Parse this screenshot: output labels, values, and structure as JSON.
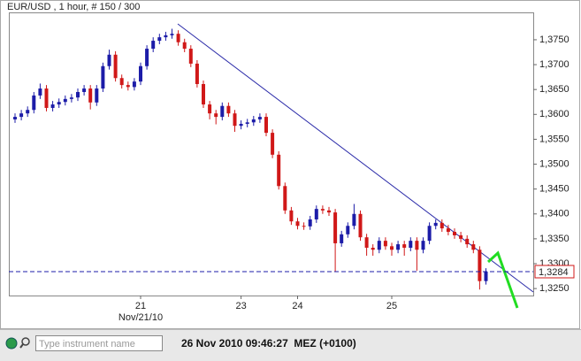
{
  "chart_data": {
    "type": "candlestick",
    "title": "EUR/USD , 1 hour, # 150 / 300",
    "categories": [
      null,
      null,
      null,
      null,
      null,
      null,
      null,
      null,
      null,
      null,
      null,
      null,
      null,
      null,
      null,
      null,
      null,
      null,
      null,
      null,
      "21",
      null,
      null,
      null,
      null,
      null,
      null,
      null,
      null,
      null,
      null,
      null,
      null,
      null,
      null,
      null,
      "23",
      null,
      null,
      null,
      null,
      null,
      null,
      null,
      null,
      "24",
      null,
      null,
      null,
      null,
      null,
      null,
      null,
      null,
      null,
      null,
      null,
      null,
      null,
      null,
      "25",
      null,
      null,
      null,
      null,
      null,
      null,
      null,
      null,
      null,
      null,
      null,
      null,
      null,
      null,
      null
    ],
    "date_label": "Nov/21/10",
    "open": [
      1.359,
      1.3595,
      1.3602,
      1.3609,
      1.3638,
      1.3652,
      1.3613,
      1.362,
      1.3625,
      1.3631,
      1.3634,
      1.3645,
      1.3652,
      1.3624,
      1.3652,
      1.3697,
      1.372,
      1.3673,
      1.3659,
      1.3655,
      1.3666,
      1.3697,
      1.3732,
      1.3748,
      1.3755,
      1.3759,
      1.3762,
      1.3745,
      1.3732,
      1.3702,
      1.3661,
      1.362,
      1.3602,
      1.3595,
      1.3617,
      1.3602,
      1.3577,
      1.3581,
      1.3584,
      1.359,
      1.3595,
      1.3563,
      1.3519,
      1.3456,
      1.3407,
      1.3385,
      1.3376,
      1.3375,
      1.3389,
      1.341,
      1.3407,
      1.3403,
      1.3341,
      1.3359,
      1.3376,
      1.34,
      1.3353,
      1.3332,
      1.3328,
      1.3346,
      1.3335,
      1.3328,
      1.3339,
      1.3332,
      1.3346,
      1.3328,
      1.3346,
      1.3376,
      1.3382,
      1.3371,
      1.3364,
      1.3357,
      1.335,
      1.3339,
      1.3328,
      1.3265
    ],
    "high": [
      1.3602,
      1.3609,
      1.3616,
      1.3645,
      1.3662,
      1.3659,
      1.3627,
      1.3632,
      1.3638,
      1.3641,
      1.3652,
      1.3659,
      1.3659,
      1.3659,
      1.3704,
      1.373,
      1.3727,
      1.368,
      1.3666,
      1.3673,
      1.3704,
      1.3739,
      1.3755,
      1.3762,
      1.3766,
      1.3772,
      1.3769,
      1.3752,
      1.3739,
      1.3709,
      1.3668,
      1.3627,
      1.3609,
      1.3624,
      1.3624,
      1.3609,
      1.3588,
      1.3591,
      1.3597,
      1.3602,
      1.3602,
      1.357,
      1.3526,
      1.3463,
      1.3414,
      1.3392,
      1.3383,
      1.3396,
      1.3417,
      1.3417,
      1.3414,
      1.341,
      1.3366,
      1.3383,
      1.342,
      1.3407,
      1.336,
      1.3339,
      1.3353,
      1.3353,
      1.3342,
      1.3346,
      1.3346,
      1.3353,
      1.3353,
      1.3353,
      1.3383,
      1.3389,
      1.3389,
      1.3378,
      1.3371,
      1.3364,
      1.3357,
      1.3346,
      1.3335,
      1.3291
    ],
    "low": [
      1.3583,
      1.3588,
      1.3595,
      1.3602,
      1.3631,
      1.3606,
      1.3606,
      1.3613,
      1.3618,
      1.3624,
      1.3627,
      1.3638,
      1.361,
      1.3617,
      1.3645,
      1.369,
      1.3666,
      1.3652,
      1.3648,
      1.3648,
      1.3659,
      1.369,
      1.3725,
      1.3741,
      1.3748,
      1.3752,
      1.3738,
      1.3725,
      1.3695,
      1.3654,
      1.3613,
      1.359,
      1.358,
      1.3588,
      1.3595,
      1.3565,
      1.357,
      1.3574,
      1.3577,
      1.3583,
      1.3556,
      1.3512,
      1.3449,
      1.34,
      1.3378,
      1.3369,
      1.3368,
      1.3368,
      1.3382,
      1.34,
      1.3396,
      1.3284,
      1.3334,
      1.3352,
      1.3369,
      1.3346,
      1.3316,
      1.3316,
      1.3321,
      1.3328,
      1.3316,
      1.3321,
      1.3316,
      1.3325,
      1.3286,
      1.3321,
      1.3339,
      1.3369,
      1.3364,
      1.3357,
      1.335,
      1.3343,
      1.3332,
      1.3321,
      1.3248,
      1.3258
    ],
    "close": [
      1.3595,
      1.3602,
      1.3609,
      1.3638,
      1.3652,
      1.3613,
      1.362,
      1.3625,
      1.3631,
      1.3634,
      1.3645,
      1.3652,
      1.3624,
      1.3652,
      1.3697,
      1.372,
      1.3673,
      1.3659,
      1.3655,
      1.3666,
      1.3697,
      1.3732,
      1.3748,
      1.3755,
      1.3759,
      1.3762,
      1.3745,
      1.3732,
      1.3702,
      1.3661,
      1.362,
      1.3602,
      1.3595,
      1.3617,
      1.3602,
      1.3577,
      1.3581,
      1.3584,
      1.359,
      1.3595,
      1.3563,
      1.3519,
      1.3456,
      1.3407,
      1.3385,
      1.3376,
      1.3375,
      1.3389,
      1.341,
      1.3407,
      1.3403,
      1.3341,
      1.3359,
      1.3376,
      1.34,
      1.3353,
      1.3332,
      1.3328,
      1.3346,
      1.3335,
      1.3328,
      1.3339,
      1.3332,
      1.3346,
      1.3328,
      1.3346,
      1.3376,
      1.3382,
      1.3371,
      1.3364,
      1.3357,
      1.335,
      1.3339,
      1.3328,
      1.3265,
      1.3284
    ],
    "up_color": "#1c1ca8",
    "down_color": "#d01818",
    "ylim": [
      1.3236,
      1.3805
    ],
    "yticks": [
      {
        "value": 1.325,
        "label": "1,3250"
      },
      {
        "value": 1.33,
        "label": "1,3300"
      },
      {
        "value": 1.335,
        "label": "1,3350"
      },
      {
        "value": 1.34,
        "label": "1,3400"
      },
      {
        "value": 1.345,
        "label": "1,3450"
      },
      {
        "value": 1.35,
        "label": "1,3500"
      },
      {
        "value": 1.355,
        "label": "1,3550"
      },
      {
        "value": 1.36,
        "label": "1,3600"
      },
      {
        "value": 1.365,
        "label": "1,3650"
      },
      {
        "value": 1.37,
        "label": "1,3700"
      },
      {
        "value": 1.375,
        "label": "1,3750"
      }
    ],
    "current_price": {
      "value": 1.3284,
      "label": "1,3284"
    },
    "grid": false
  },
  "toolbar": {
    "search_placeholder": "Type instrument name",
    "timestamp": "26 Nov 2010 09:46:27  MEZ (+0100)"
  }
}
